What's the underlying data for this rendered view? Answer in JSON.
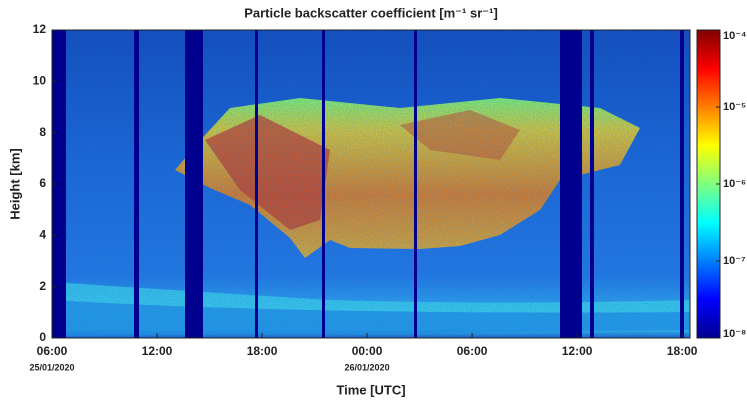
{
  "chart_data": {
    "type": "heatmap",
    "title": "Particle backscatter coefficient [m⁻¹ sr⁻¹]",
    "xlabel": "Time [UTC]",
    "ylabel": "Height [km]",
    "xlim": [
      6,
      42.45
    ],
    "xticks": [
      {
        "value": 6,
        "label": "06:00"
      },
      {
        "value": 12,
        "label": "12:00"
      },
      {
        "value": 18,
        "label": "18:00"
      },
      {
        "value": 24,
        "label": "00:00"
      },
      {
        "value": 30,
        "label": "06:00"
      },
      {
        "value": 36,
        "label": "12:00"
      },
      {
        "value": 42,
        "label": "18:00"
      }
    ],
    "date_labels": [
      {
        "value": 6,
        "label": "25/01/2020"
      },
      {
        "value": 24,
        "label": "26/01/2020"
      }
    ],
    "ylim": [
      0,
      12
    ],
    "yticks": [
      0,
      2,
      4,
      6,
      8,
      10,
      12
    ],
    "colorbar": {
      "scale": "log",
      "colormap": "jet",
      "lim": [
        1e-08,
        0.0001
      ],
      "ticks": [
        {
          "value": 1e-08,
          "label": "10⁻⁸"
        },
        {
          "value": 1e-07,
          "label": "10⁻⁷"
        },
        {
          "value": 1e-06,
          "label": "10⁻⁶"
        },
        {
          "value": 1e-05,
          "label": "10⁻⁵"
        },
        {
          "value": 0.0001,
          "label": "10⁻⁴"
        }
      ]
    }
  }
}
